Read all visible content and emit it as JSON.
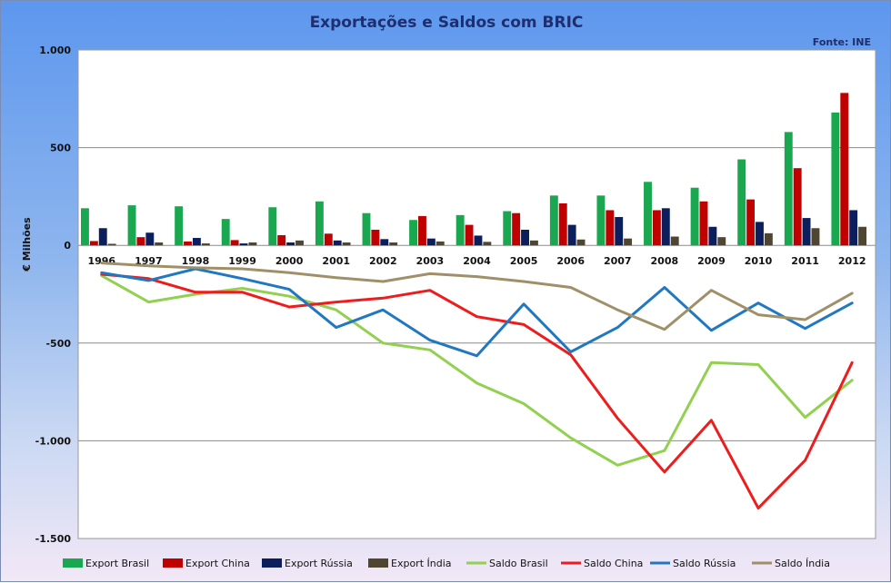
{
  "chart_data": {
    "type": "bar",
    "title": "Exportações e Saldos com BRIC",
    "source": "Fonte: INE",
    "xlabel": "",
    "ylabel": "€ Milhões",
    "ylim": [
      -1500,
      1000
    ],
    "yticks": [
      1000,
      500,
      0,
      -500,
      -1000,
      -1500
    ],
    "ytick_labels": [
      "1.000",
      "500",
      "0",
      "-500",
      "-1.000",
      "-1.500"
    ],
    "grid": true,
    "legend_position": "bottom",
    "categories": [
      "1996",
      "1997",
      "1998",
      "1999",
      "2000",
      "2001",
      "2002",
      "2003",
      "2004",
      "2005",
      "2006",
      "2007",
      "2008",
      "2009",
      "2010",
      "2011",
      "2012"
    ],
    "series": [
      {
        "name": "Export Brasil",
        "kind": "bar",
        "color": "#19a84f",
        "values": [
          190,
          205,
          200,
          135,
          195,
          225,
          165,
          130,
          155,
          175,
          255,
          255,
          325,
          295,
          440,
          580,
          680
        ]
      },
      {
        "name": "Export China",
        "kind": "bar",
        "color": "#c00000",
        "values": [
          22,
          42,
          20,
          27,
          52,
          60,
          80,
          150,
          105,
          165,
          215,
          180,
          180,
          225,
          235,
          395,
          780
        ]
      },
      {
        "name": "Export Rússia",
        "kind": "bar",
        "color": "#0c1f5c",
        "values": [
          88,
          65,
          38,
          10,
          15,
          25,
          32,
          35,
          50,
          80,
          105,
          145,
          190,
          95,
          120,
          140,
          180
        ]
      },
      {
        "name": "Export Índia",
        "kind": "bar",
        "color": "#4f4632",
        "values": [
          8,
          15,
          10,
          15,
          25,
          15,
          15,
          20,
          18,
          25,
          30,
          35,
          45,
          42,
          62,
          88,
          95
        ]
      },
      {
        "name": "Saldo Brasil",
        "kind": "line",
        "color": "#92d050",
        "values": [
          -155,
          -290,
          -250,
          -220,
          -260,
          -330,
          -500,
          -535,
          -705,
          -810,
          -985,
          -1125,
          -1050,
          -600,
          -610,
          -880,
          -690
        ]
      },
      {
        "name": "Saldo China",
        "kind": "line",
        "color": "#ee1c1c",
        "values": [
          -148,
          -170,
          -240,
          -240,
          -315,
          -290,
          -270,
          -230,
          -365,
          -405,
          -560,
          -885,
          -1160,
          -895,
          -1345,
          -1100,
          -600
        ]
      },
      {
        "name": "Saldo Rússia",
        "kind": "line",
        "color": "#1f78c1",
        "values": [
          -140,
          -180,
          -120,
          -170,
          -225,
          -420,
          -330,
          -485,
          -565,
          -300,
          -545,
          -420,
          -215,
          -435,
          -295,
          -425,
          -295
        ]
      },
      {
        "name": "Saldo Índia",
        "kind": "line",
        "color": "#a0906a",
        "values": [
          -90,
          -105,
          -115,
          -120,
          -140,
          -165,
          -185,
          -145,
          -160,
          -185,
          -215,
          -330,
          -430,
          -230,
          -355,
          -380,
          -245
        ]
      }
    ]
  }
}
